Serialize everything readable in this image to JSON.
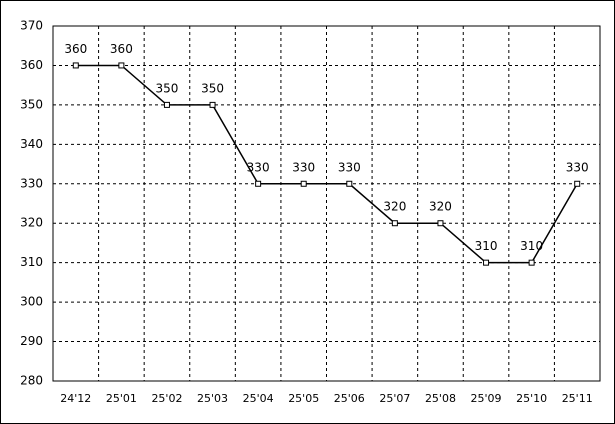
{
  "chart_data": {
    "type": "line",
    "categories": [
      "24'12",
      "25'01",
      "25'02",
      "25'03",
      "25'04",
      "25'05",
      "25'06",
      "25'07",
      "25'08",
      "25'09",
      "25'10",
      "25'11"
    ],
    "series": [
      {
        "color": "#000000",
        "values": [
          360,
          360,
          350,
          350,
          330,
          330,
          330,
          320,
          320,
          310,
          310,
          330
        ]
      }
    ],
    "ylim": [
      280,
      370
    ],
    "yticks": [
      280,
      290,
      300,
      310,
      320,
      330,
      340,
      350,
      360,
      370
    ],
    "grid": true,
    "data_labels": true
  }
}
